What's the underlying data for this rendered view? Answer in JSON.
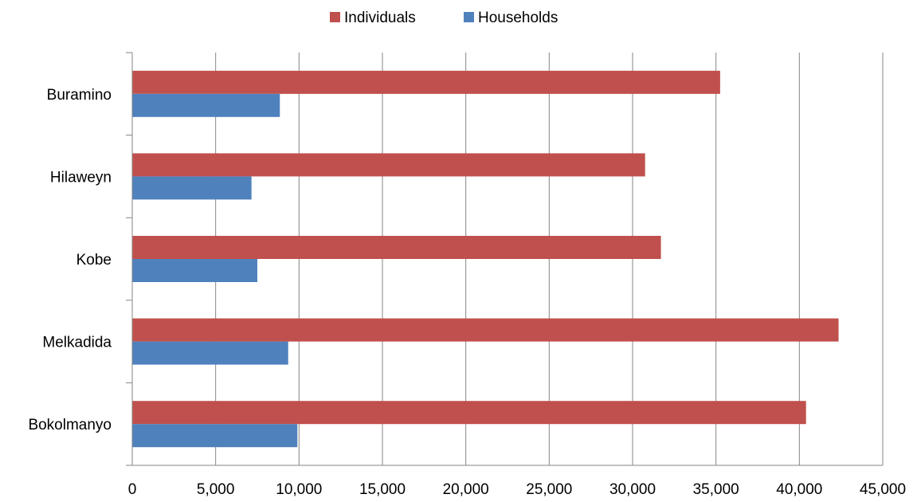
{
  "chart_data": {
    "type": "bar",
    "orientation": "horizontal",
    "title": "",
    "xlabel": "",
    "ylabel": "",
    "categories": [
      "Buramino",
      "Hilaweyn",
      "Kobe",
      "Melkadida",
      "Bokolmanyo"
    ],
    "series": [
      {
        "name": "Individuals",
        "color": "#C0504D",
        "values": [
          35250,
          30750,
          31700,
          42350,
          40400
        ]
      },
      {
        "name": "Households",
        "color": "#4F81BD",
        "values": [
          8850,
          7150,
          7500,
          9350,
          9900
        ]
      }
    ],
    "xlim": [
      0,
      45000
    ],
    "xticks": [
      "0",
      "5,000",
      "10,000",
      "15,000",
      "20,000",
      "25,000",
      "30,000",
      "35,000",
      "40,000",
      "45,000"
    ],
    "xtick_values": [
      0,
      5000,
      10000,
      15000,
      20000,
      25000,
      30000,
      35000,
      40000,
      45000
    ],
    "grid": true,
    "legend_position": "top"
  }
}
